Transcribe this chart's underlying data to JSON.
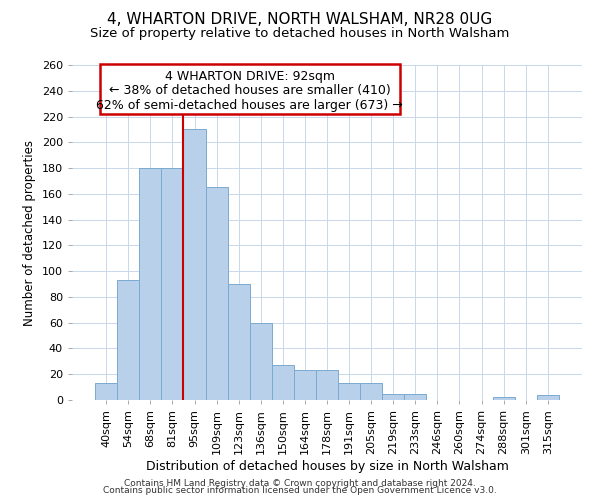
{
  "title": "4, WHARTON DRIVE, NORTH WALSHAM, NR28 0UG",
  "subtitle": "Size of property relative to detached houses in North Walsham",
  "xlabel": "Distribution of detached houses by size in North Walsham",
  "ylabel": "Number of detached properties",
  "footer1": "Contains HM Land Registry data © Crown copyright and database right 2024.",
  "footer2": "Contains public sector information licensed under the Open Government Licence v3.0.",
  "bar_labels": [
    "40sqm",
    "54sqm",
    "68sqm",
    "81sqm",
    "95sqm",
    "109sqm",
    "123sqm",
    "136sqm",
    "150sqm",
    "164sqm",
    "178sqm",
    "191sqm",
    "205sqm",
    "219sqm",
    "233sqm",
    "246sqm",
    "260sqm",
    "274sqm",
    "288sqm",
    "301sqm",
    "315sqm"
  ],
  "bar_values": [
    13,
    93,
    180,
    180,
    210,
    165,
    90,
    60,
    27,
    23,
    23,
    13,
    13,
    5,
    5,
    0,
    0,
    0,
    2,
    0,
    4
  ],
  "bar_color": "#b8d0ea",
  "bar_edge_color": "#7aaad0",
  "vline_x_index": 4,
  "vline_color": "#cc0000",
  "ylim": [
    0,
    260
  ],
  "yticks": [
    0,
    20,
    40,
    60,
    80,
    100,
    120,
    140,
    160,
    180,
    200,
    220,
    240,
    260
  ],
  "annotation_line1": "4 WHARTON DRIVE: 92sqm",
  "annotation_line2": "← 38% of detached houses are smaller (410)",
  "annotation_line3": "62% of semi-detached houses are larger (673) →",
  "background_color": "#ffffff",
  "grid_color": "#c8d8ea",
  "title_fontsize": 11,
  "subtitle_fontsize": 9.5,
  "xlabel_fontsize": 9,
  "ylabel_fontsize": 8.5,
  "tick_fontsize": 8,
  "ann_fontsize": 9,
  "footer_fontsize": 6.5
}
